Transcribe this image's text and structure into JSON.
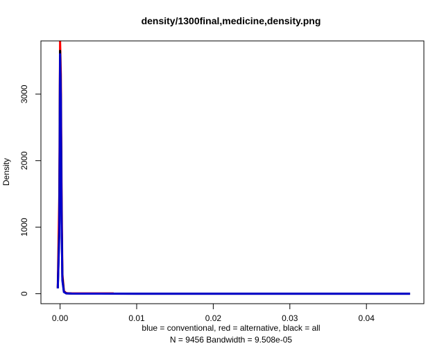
{
  "chart_data": {
    "type": "line",
    "title": "density/1300final,medicine,density.png",
    "xlabel": "blue = conventional, red = alternative, black = all",
    "xlabel2": "N = 9456   Bandwidth = 9.508e-05",
    "ylabel": "Density",
    "xlim": [
      -0.0025,
      0.0475
    ],
    "ylim": [
      -150,
      3800
    ],
    "x_ticks": [
      0.0,
      0.01,
      0.02,
      0.03,
      0.04
    ],
    "x_tick_labels": [
      "0.00",
      "0.01",
      "0.02",
      "0.03",
      "0.04"
    ],
    "y_ticks": [
      0,
      1000,
      2000,
      3000
    ],
    "y_tick_labels": [
      "0",
      "1000",
      "2000",
      "3000"
    ],
    "grid": false,
    "legend": "none",
    "series": [
      {
        "color": "#ff0000",
        "x": [
          -0.0003,
          -0.0001,
          0.0,
          0.0001,
          0.0002,
          0.0003,
          0.0005,
          0.0008,
          0.0012,
          0.002,
          0.004,
          0.007
        ],
        "y": [
          100,
          1500,
          3800,
          3300,
          1500,
          300,
          40,
          10,
          5,
          5,
          5,
          5
        ]
      },
      {
        "color": "#000000",
        "x": [
          -0.0003,
          -0.0001,
          0.0,
          0.0001,
          0.0002,
          0.0003,
          0.0005,
          0.0008,
          0.0015,
          0.005,
          0.01,
          0.02,
          0.03,
          0.04,
          0.0457
        ],
        "y": [
          80,
          1000,
          3650,
          3000,
          1200,
          250,
          30,
          5,
          2,
          1,
          0,
          0,
          0,
          0,
          0
        ]
      },
      {
        "color": "#0000cc",
        "x": [
          -0.0003,
          -0.0001,
          0.0,
          0.0001,
          0.0002,
          0.0003,
          0.0005,
          0.0008,
          0.0015,
          0.005,
          0.01,
          0.02,
          0.03,
          0.04,
          0.0457
        ],
        "y": [
          80,
          900,
          3600,
          2900,
          1100,
          200,
          25,
          5,
          2,
          1,
          0,
          0,
          0,
          0,
          0
        ]
      }
    ]
  }
}
